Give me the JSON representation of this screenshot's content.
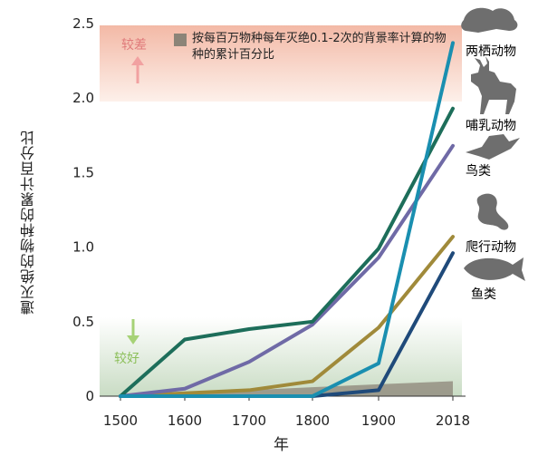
{
  "chart_data": {
    "type": "line",
    "x": [
      1500,
      1600,
      1700,
      1800,
      1900,
      2018
    ],
    "ylim": [
      0,
      2.5
    ],
    "yticks": [
      0,
      0.5,
      1.0,
      1.5,
      2.0,
      2.5
    ],
    "ytick_labels": [
      "0",
      "0.5",
      "1.0",
      "1.5",
      "2.0",
      "2.5"
    ],
    "xtick_labels": [
      "1500",
      "1600",
      "1700",
      "1800",
      "1900",
      "2018"
    ],
    "xlabel": "年",
    "ylabel": "遭灭绝的物种的累计百分比",
    "legend": "按每百万物种每年灭绝0.1-2次的背景率计算的物种的累计百分比",
    "zones": {
      "worse": "较差",
      "better": "较好"
    },
    "series": [
      {
        "name": "两栖动物",
        "color": "#1a8fb0",
        "icon": "frog-icon",
        "values": [
          0,
          0,
          0,
          0,
          0.22,
          2.37
        ]
      },
      {
        "name": "哺乳动物",
        "color": "#1d6e5a",
        "icon": "deer-icon",
        "values": [
          0,
          0.38,
          0.45,
          0.5,
          0.99,
          1.93
        ]
      },
      {
        "name": "鸟类",
        "color": "#6f6aa6",
        "icon": "bird-icon",
        "values": [
          0,
          0.05,
          0.23,
          0.48,
          0.93,
          1.68
        ]
      },
      {
        "name": "爬行动物",
        "color": "#a08a3a",
        "icon": "lizard-icon",
        "values": [
          0,
          0.02,
          0.04,
          0.1,
          0.46,
          1.07
        ]
      },
      {
        "name": "鱼类",
        "color": "#1f4a7a",
        "icon": "fish-icon",
        "values": [
          0,
          0,
          0,
          0,
          0.04,
          0.96
        ]
      }
    ],
    "background_rate": {
      "values": [
        0,
        0.02,
        0.04,
        0.06,
        0.08,
        0.1
      ]
    }
  }
}
